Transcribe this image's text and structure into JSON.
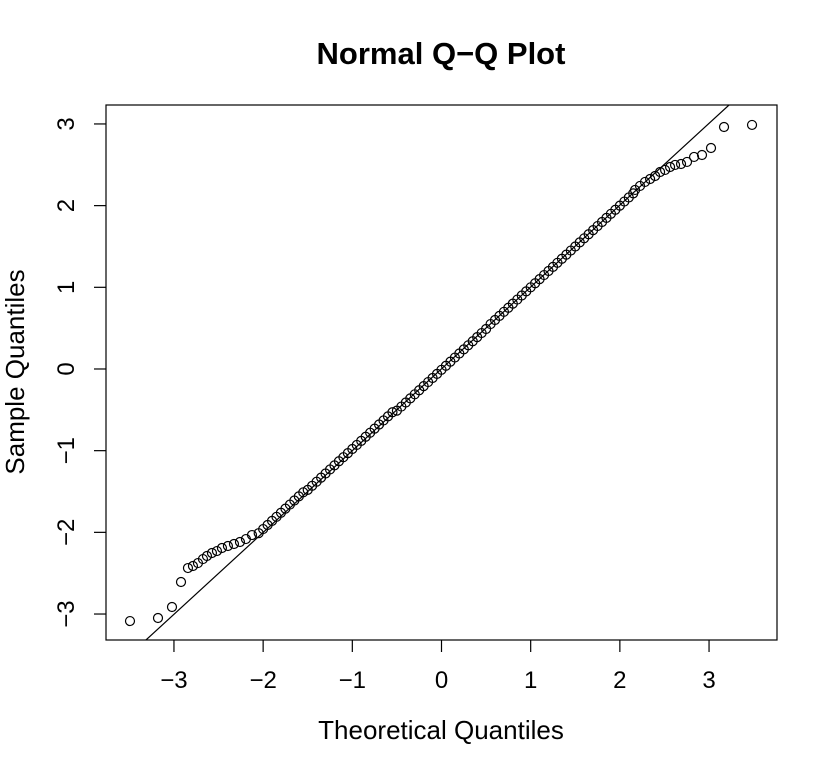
{
  "chart_data": {
    "type": "scatter",
    "title": "Normal Q−Q Plot",
    "x_label": "Theoretical Quantiles",
    "y_label": "Sample Quantiles",
    "xlim": [
      -3.762,
      3.762
    ],
    "ylim": [
      -3.318,
      3.232
    ],
    "xticks": [
      {
        "value": -3,
        "label": "−3"
      },
      {
        "value": -2,
        "label": "−2"
      },
      {
        "value": -1,
        "label": "−1"
      },
      0,
      1,
      2,
      3
    ],
    "yticks": [
      {
        "value": -3,
        "label": "−3"
      },
      {
        "value": -2,
        "label": "−2"
      },
      {
        "value": -1,
        "label": "−1"
      },
      0,
      1,
      2,
      3
    ],
    "color": "#000000",
    "reference_line": {
      "x": [
        -3.314,
        3.224
      ],
      "y": [
        -3.318,
        3.232
      ]
    },
    "x": [
      -3.493,
      -3.179,
      -3.022,
      -2.921,
      -2.843,
      -2.787,
      -2.731,
      -2.675,
      -2.63,
      -2.574,
      -2.518,
      -2.462,
      -2.395,
      -2.327,
      -2.26,
      -2.193,
      -2.125,
      -2.05,
      -2.0,
      -1.95,
      -1.9,
      -1.85,
      -1.8,
      -1.75,
      -1.7,
      -1.65,
      -1.6,
      -1.55,
      -1.5,
      -1.45,
      -1.4,
      -1.35,
      -1.3,
      -1.25,
      -1.2,
      -1.15,
      -1.1,
      -1.05,
      -1.0,
      -0.95,
      -0.9,
      -0.85,
      -0.8,
      -0.75,
      -0.7,
      -0.65,
      -0.6,
      -0.55,
      -0.5,
      -0.45,
      -0.4,
      -0.35,
      -0.3,
      -0.25,
      -0.2,
      -0.15,
      -0.1,
      -0.05,
      0.0,
      0.05,
      0.1,
      0.15,
      0.2,
      0.25,
      0.3,
      0.35,
      0.4,
      0.45,
      0.5,
      0.55,
      0.6,
      0.65,
      0.7,
      0.75,
      0.8,
      0.85,
      0.9,
      0.95,
      1.0,
      1.05,
      1.1,
      1.15,
      1.2,
      1.25,
      1.3,
      1.35,
      1.4,
      1.45,
      1.5,
      1.55,
      1.6,
      1.65,
      1.7,
      1.75,
      1.8,
      1.85,
      1.9,
      1.95,
      2.0,
      2.05,
      2.1,
      2.15,
      2.17,
      2.226,
      2.282,
      2.339,
      2.395,
      2.451,
      2.507,
      2.563,
      2.619,
      2.686,
      2.753,
      2.832,
      2.921,
      3.022,
      3.168,
      3.482
    ],
    "y": [
      -3.086,
      -3.049,
      -2.914,
      -2.608,
      -2.437,
      -2.412,
      -2.376,
      -2.327,
      -2.29,
      -2.253,
      -2.229,
      -2.192,
      -2.167,
      -2.143,
      -2.118,
      -2.082,
      -2.033,
      -2.01,
      -1.96,
      -1.91,
      -1.86,
      -1.81,
      -1.76,
      -1.71,
      -1.66,
      -1.61,
      -1.56,
      -1.51,
      -1.48,
      -1.43,
      -1.38,
      -1.33,
      -1.28,
      -1.23,
      -1.18,
      -1.13,
      -1.08,
      -1.03,
      -0.98,
      -0.93,
      -0.88,
      -0.83,
      -0.78,
      -0.73,
      -0.68,
      -0.63,
      -0.58,
      -0.53,
      -0.51,
      -0.46,
      -0.41,
      -0.36,
      -0.31,
      -0.26,
      -0.21,
      -0.16,
      -0.11,
      -0.06,
      -0.01,
      0.04,
      0.09,
      0.14,
      0.19,
      0.24,
      0.29,
      0.34,
      0.39,
      0.44,
      0.49,
      0.55,
      0.6,
      0.65,
      0.7,
      0.75,
      0.8,
      0.85,
      0.9,
      0.95,
      1.0,
      1.05,
      1.1,
      1.15,
      1.2,
      1.25,
      1.3,
      1.35,
      1.4,
      1.45,
      1.5,
      1.55,
      1.6,
      1.65,
      1.7,
      1.75,
      1.8,
      1.85,
      1.9,
      1.95,
      2.0,
      2.05,
      2.1,
      2.15,
      2.192,
      2.241,
      2.29,
      2.326,
      2.363,
      2.412,
      2.437,
      2.473,
      2.498,
      2.51,
      2.535,
      2.596,
      2.62,
      2.706,
      2.963,
      2.988
    ]
  }
}
